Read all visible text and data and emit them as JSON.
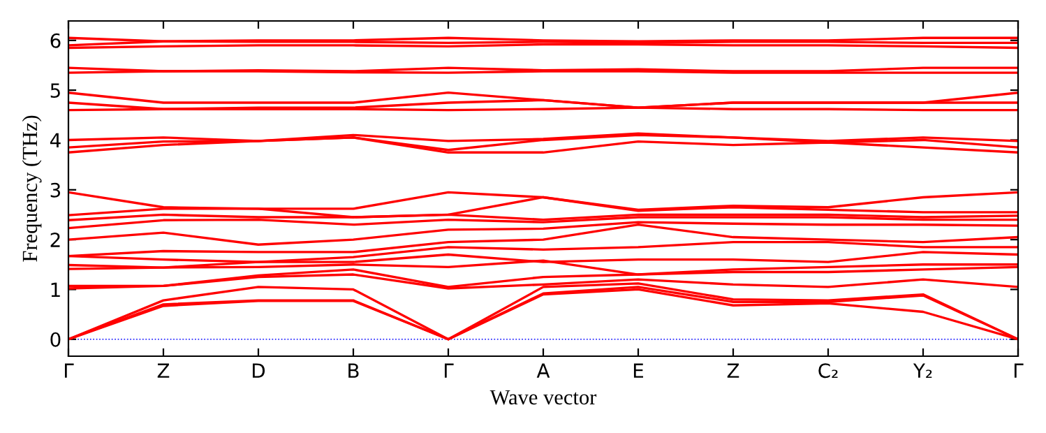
{
  "chart_data": {
    "type": "line",
    "xlabel": "Wave vector",
    "ylabel": "Frequency (THz)",
    "categories": [
      "Γ",
      "Z",
      "D",
      "B",
      "Γ",
      "A",
      "E",
      "Z",
      "C₂",
      "Y₂",
      "Γ"
    ],
    "ylim": [
      -0.34,
      6.39
    ],
    "yticks": [
      0,
      1,
      2,
      3,
      4,
      5,
      6
    ],
    "grid": false,
    "legend": false,
    "line_style": "solid",
    "marker": "none",
    "ref_lines": [
      {
        "axis": "y",
        "value": 0,
        "color": "#0000ff",
        "line_style": "dotted"
      }
    ],
    "series": [
      {
        "color": "#ff0000",
        "values": [
          0,
          0.67,
          0.77,
          0.77,
          0,
          0.9,
          1.0,
          0.68,
          0.72,
          0.55,
          0
        ]
      },
      {
        "color": "#ff0000",
        "values": [
          0,
          0.7,
          0.78,
          0.78,
          0,
          0.92,
          1.05,
          0.75,
          0.75,
          0.88,
          0
        ]
      },
      {
        "color": "#ff0000",
        "values": [
          0,
          0.78,
          1.05,
          1.0,
          0,
          1.05,
          1.12,
          0.8,
          0.78,
          0.9,
          0
        ]
      },
      {
        "color": "#ff0000",
        "values": [
          1.02,
          1.07,
          1.25,
          1.3,
          1.02,
          1.1,
          1.2,
          1.1,
          1.05,
          1.2,
          1.05
        ]
      },
      {
        "color": "#ff0000",
        "values": [
          1.07,
          1.07,
          1.28,
          1.4,
          1.05,
          1.25,
          1.3,
          1.35,
          1.35,
          1.4,
          1.45
        ]
      },
      {
        "color": "#ff0000",
        "values": [
          1.41,
          1.44,
          1.45,
          1.5,
          1.45,
          1.58,
          1.3,
          1.4,
          1.45,
          1.5,
          1.5
        ]
      },
      {
        "color": "#ff0000",
        "values": [
          1.49,
          1.44,
          1.55,
          1.55,
          1.7,
          1.55,
          1.6,
          1.6,
          1.55,
          1.75,
          1.7
        ]
      },
      {
        "color": "#ff0000",
        "values": [
          1.67,
          1.6,
          1.55,
          1.65,
          1.85,
          1.8,
          1.85,
          1.95,
          1.95,
          1.85,
          1.85
        ]
      },
      {
        "color": "#ff0000",
        "values": [
          1.67,
          1.77,
          1.75,
          1.75,
          1.95,
          2.0,
          2.3,
          2.05,
          2.0,
          1.95,
          2.05
        ]
      },
      {
        "color": "#ff0000",
        "values": [
          2.0,
          2.14,
          1.9,
          2.0,
          2.2,
          2.22,
          2.35,
          2.32,
          2.3,
          2.3,
          2.28
        ]
      },
      {
        "color": "#ff0000",
        "values": [
          2.23,
          2.39,
          2.4,
          2.3,
          2.4,
          2.35,
          2.45,
          2.45,
          2.45,
          2.4,
          2.4
        ]
      },
      {
        "color": "#ff0000",
        "values": [
          2.39,
          2.5,
          2.45,
          2.45,
          2.5,
          2.4,
          2.5,
          2.5,
          2.5,
          2.45,
          2.48
        ]
      },
      {
        "color": "#ff0000",
        "values": [
          2.49,
          2.62,
          2.62,
          2.45,
          2.5,
          2.85,
          2.58,
          2.65,
          2.6,
          2.55,
          2.55
        ]
      },
      {
        "color": "#ff0000",
        "values": [
          2.95,
          2.65,
          2.62,
          2.62,
          2.95,
          2.85,
          2.6,
          2.68,
          2.65,
          2.85,
          2.95
        ]
      },
      {
        "color": "#ff0000",
        "values": [
          3.75,
          3.9,
          3.98,
          4.05,
          3.75,
          3.75,
          3.97,
          3.9,
          3.95,
          3.85,
          3.75
        ]
      },
      {
        "color": "#ff0000",
        "values": [
          3.85,
          3.97,
          3.98,
          4.05,
          3.8,
          4.0,
          4.1,
          4.05,
          3.95,
          4.0,
          3.85
        ]
      },
      {
        "color": "#ff0000",
        "values": [
          4.0,
          4.05,
          3.98,
          4.1,
          3.98,
          4.02,
          4.13,
          4.05,
          3.98,
          4.05,
          3.98
        ]
      },
      {
        "color": "#ff0000",
        "values": [
          4.6,
          4.62,
          4.62,
          4.62,
          4.6,
          4.62,
          4.65,
          4.62,
          4.62,
          4.6,
          4.6
        ]
      },
      {
        "color": "#ff0000",
        "values": [
          4.75,
          4.62,
          4.65,
          4.65,
          4.75,
          4.8,
          4.65,
          4.75,
          4.75,
          4.75,
          4.75
        ]
      },
      {
        "color": "#ff0000",
        "values": [
          4.95,
          4.75,
          4.75,
          4.75,
          4.95,
          4.8,
          4.65,
          4.75,
          4.75,
          4.75,
          4.95
        ]
      },
      {
        "color": "#ff0000",
        "values": [
          5.35,
          5.38,
          5.38,
          5.36,
          5.35,
          5.38,
          5.38,
          5.35,
          5.35,
          5.35,
          5.35
        ]
      },
      {
        "color": "#ff0000",
        "values": [
          5.45,
          5.38,
          5.4,
          5.38,
          5.45,
          5.4,
          5.42,
          5.38,
          5.38,
          5.45,
          5.45
        ]
      },
      {
        "color": "#ff0000",
        "values": [
          5.85,
          5.88,
          5.9,
          5.9,
          5.88,
          5.92,
          5.92,
          5.9,
          5.9,
          5.88,
          5.85
        ]
      },
      {
        "color": "#ff0000",
        "values": [
          5.9,
          5.98,
          5.97,
          5.97,
          5.95,
          5.97,
          5.95,
          5.97,
          5.97,
          5.95,
          5.95
        ]
      },
      {
        "color": "#ff0000",
        "values": [
          6.05,
          5.98,
          6.0,
          6.0,
          6.05,
          6.0,
          5.98,
          6.0,
          6.0,
          6.05,
          6.05
        ]
      }
    ]
  }
}
